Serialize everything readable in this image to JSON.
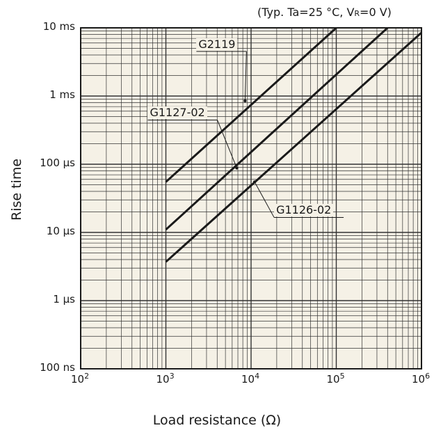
{
  "chart_data": {
    "type": "line",
    "title": "",
    "conditions": {
      "text": "(Typ. Ta=25 °C, V",
      "sub": "R",
      "tail": "=0 V)"
    },
    "xlabel": "Load resistance (Ω)",
    "ylabel": "Rise time",
    "x_scale": "log",
    "y_scale": "log",
    "xlim": [
      100,
      1000000
    ],
    "ylim": [
      1e-07,
      0.01
    ],
    "x_tick_labels": [
      {
        "base": "10",
        "exp": "2",
        "value": 100
      },
      {
        "base": "10",
        "exp": "3",
        "value": 1000
      },
      {
        "base": "10",
        "exp": "4",
        "value": 10000
      },
      {
        "base": "10",
        "exp": "5",
        "value": 100000
      },
      {
        "base": "10",
        "exp": "6",
        "value": 1000000
      }
    ],
    "y_tick_labels": [
      {
        "label": "10 ms",
        "value": 0.01
      },
      {
        "label": "1 ms",
        "value": 0.001
      },
      {
        "label": "100 µs",
        "value": 0.0001
      },
      {
        "label": "10 µs",
        "value": 1e-05
      },
      {
        "label": "1 µs",
        "value": 1e-06
      },
      {
        "label": "100 ns",
        "value": 1e-07
      }
    ],
    "grid": true,
    "series": [
      {
        "name": "G2119",
        "x": [
          1000,
          100000
        ],
        "y": [
          5.5e-05,
          0.01
        ]
      },
      {
        "name": "G1127-02",
        "x": [
          1000,
          400000
        ],
        "y": [
          1.1e-05,
          0.01
        ]
      },
      {
        "name": "G1126-02",
        "x": [
          1000,
          1000000
        ],
        "y": [
          3.7e-06,
          0.0085
        ]
      }
    ],
    "annotations": [
      {
        "text": "G2119",
        "x": 8500,
        "y": 0.00085
      },
      {
        "text": "G1127-02",
        "x": 6800,
        "y": 8.8e-05
      },
      {
        "text": "G1126-02",
        "x": 11000,
        "y": 5.5e-05
      }
    ],
    "colors": {
      "background": "#f5f1e6",
      "line": "#1a1a1a",
      "grid": "#333333"
    }
  }
}
